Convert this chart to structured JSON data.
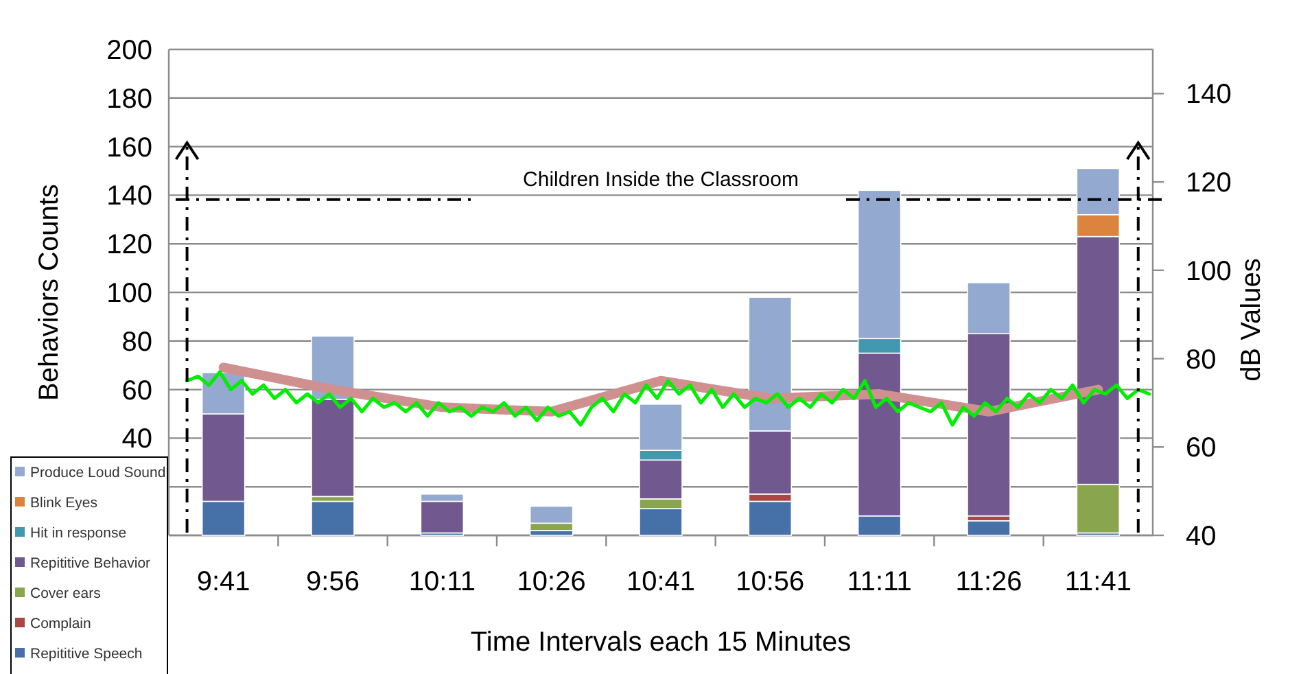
{
  "chart_data": {
    "type": "bar",
    "stacked": true,
    "xlabel": "Time Intervals each 15 Minutes",
    "ylabel": "Behaviors Counts",
    "y2label": "dB Values",
    "x": [
      9.6833,
      9.9333,
      10.1833,
      10.4333,
      10.6833,
      10.9333,
      11.1833,
      11.4333,
      11.6833
    ],
    "xlim": [
      9.5583,
      11.8083
    ],
    "xticks": [
      {
        "value": 9.6833,
        "label": "9:41"
      },
      {
        "value": 9.9333,
        "label": "9:56"
      },
      {
        "value": 10.1833,
        "label": "10:11"
      },
      {
        "value": 10.4333,
        "label": "10:26"
      },
      {
        "value": 10.6833,
        "label": "10:41"
      },
      {
        "value": 10.9333,
        "label": "10:56"
      },
      {
        "value": 11.1833,
        "label": "11:11"
      },
      {
        "value": 11.4333,
        "label": "11:26"
      },
      {
        "value": 11.6833,
        "label": "11:41"
      }
    ],
    "ylim": [
      0,
      200
    ],
    "yticks": [
      {
        "value": 0,
        "label": null
      },
      {
        "value": 20,
        "label": null
      },
      40,
      60,
      80,
      100,
      120,
      140,
      160,
      180,
      200
    ],
    "y2lim": [
      40,
      150
    ],
    "y2ticks": [
      40,
      60,
      80,
      100,
      120,
      140
    ],
    "grid": "y",
    "legend": "bottom left",
    "series": [
      {
        "name": "Repititive Speech",
        "color": "#4571a8",
        "values": [
          14,
          14,
          1,
          2,
          11,
          14,
          8,
          6,
          1
        ]
      },
      {
        "name": "Complain",
        "color": "#aa4643",
        "values": [
          0,
          0,
          0,
          0,
          0,
          3,
          0,
          2,
          0
        ]
      },
      {
        "name": "Cover ears",
        "color": "#89a54e",
        "values": [
          0,
          2,
          0,
          3,
          4,
          0,
          0,
          0,
          20
        ]
      },
      {
        "name": "Repititive Behavior",
        "color": "#71588f",
        "values": [
          36,
          40,
          13,
          0,
          16,
          26,
          67,
          75,
          102
        ]
      },
      {
        "name": "Hit in response",
        "color": "#4198af",
        "values": [
          0,
          0,
          0,
          0,
          4,
          0,
          6,
          0,
          0
        ]
      },
      {
        "name": "Blink Eyes",
        "color": "#db843d",
        "values": [
          0,
          0,
          0,
          0,
          0,
          0,
          0,
          0,
          9
        ]
      },
      {
        "name": "Produce Loud Sound",
        "color": "#93a9cf",
        "values": [
          17,
          26,
          3,
          7,
          19,
          55,
          61,
          21,
          19
        ]
      },
      {
        "type": "line",
        "axis": "y2",
        "color": "#d09090",
        "x": [
          9.6833,
          9.9333,
          10.1833,
          10.4333,
          10.6833,
          10.9333,
          11.1833,
          11.4333,
          11.6833
        ],
        "values": [
          78,
          73,
          69,
          68,
          75,
          71,
          72,
          68,
          73
        ]
      },
      {
        "type": "line",
        "axis": "y2",
        "color": "#00ee00",
        "x": [
          9.6,
          9.625,
          9.65,
          9.675,
          9.7,
          9.725,
          9.75,
          9.775,
          9.8,
          9.825,
          9.85,
          9.875,
          9.9,
          9.925,
          9.95,
          9.975,
          10.0,
          10.025,
          10.05,
          10.075,
          10.1,
          10.125,
          10.15,
          10.175,
          10.2,
          10.225,
          10.25,
          10.275,
          10.3,
          10.325,
          10.35,
          10.375,
          10.4,
          10.425,
          10.45,
          10.475,
          10.5,
          10.525,
          10.55,
          10.575,
          10.6,
          10.625,
          10.65,
          10.675,
          10.7,
          10.725,
          10.75,
          10.775,
          10.8,
          10.825,
          10.85,
          10.875,
          10.9,
          10.925,
          10.95,
          10.975,
          11.0,
          11.025,
          11.05,
          11.075,
          11.1,
          11.125,
          11.15,
          11.175,
          11.2,
          11.225,
          11.25,
          11.275,
          11.3,
          11.325,
          11.35,
          11.375,
          11.4,
          11.425,
          11.45,
          11.475,
          11.5,
          11.525,
          11.55,
          11.575,
          11.6,
          11.625,
          11.65,
          11.675,
          11.7,
          11.725,
          11.75,
          11.775,
          11.8
        ],
        "values": [
          75,
          76,
          74,
          77,
          73,
          75,
          72,
          74,
          71,
          73,
          70,
          72,
          70,
          72,
          69,
          71,
          68,
          71,
          69,
          70,
          68,
          70,
          67,
          70,
          68,
          69,
          67,
          69,
          68,
          70,
          67,
          69,
          66,
          69,
          67,
          68,
          65,
          69,
          71,
          68,
          72,
          70,
          74,
          71,
          75,
          72,
          74,
          70,
          73,
          69,
          72,
          69,
          71,
          70,
          72,
          69,
          71,
          69,
          72,
          70,
          73,
          71,
          75,
          69,
          71,
          68,
          70,
          69,
          68,
          70,
          65,
          69,
          67,
          70,
          68,
          71,
          69,
          72,
          70,
          73,
          71,
          74,
          70,
          73,
          72,
          74,
          71,
          73,
          72
        ]
      }
    ],
    "ref_lines": [
      {
        "axis": "x",
        "value": 9.6,
        "line_style": "dashdot",
        "color": "#000000"
      },
      {
        "axis": "x",
        "value": 11.775,
        "line_style": "dashdot",
        "color": "#000000"
      },
      {
        "axis": "y2",
        "value": 116,
        "label": "Children Inside the Classroom",
        "line_style": "dashdot",
        "color": "#000000"
      }
    ]
  }
}
